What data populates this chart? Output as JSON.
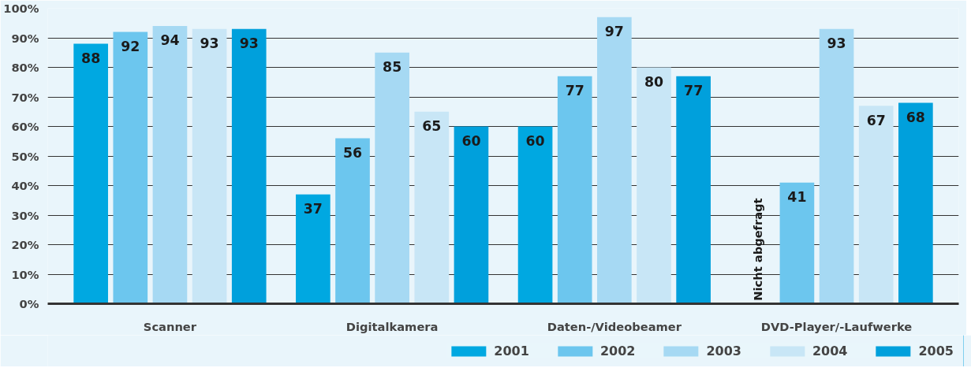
{
  "chart_data": {
    "type": "bar",
    "categories": [
      "Scanner",
      "Digitalkamera",
      "Daten-/Videobeamer",
      "DVD-Player/-Laufwerke"
    ],
    "series": [
      {
        "name": "2001",
        "color": "#00a8e1",
        "values": [
          88,
          37,
          60,
          null
        ]
      },
      {
        "name": "2002",
        "color": "#6cc6ee",
        "values": [
          92,
          56,
          77,
          41
        ]
      },
      {
        "name": "2003",
        "color": "#a6d9f3",
        "values": [
          94,
          85,
          97,
          93
        ]
      },
      {
        "name": "2004",
        "color": "#c8e6f6",
        "values": [
          93,
          65,
          80,
          67
        ]
      },
      {
        "name": "2005",
        "color": "#00a0dc",
        "values": [
          93,
          60,
          77,
          68
        ]
      }
    ],
    "ylim": [
      0,
      100
    ],
    "yticks": [
      {
        "value": 0,
        "label": "0%"
      },
      {
        "value": 10,
        "label": "10%"
      },
      {
        "value": 20,
        "label": "20%"
      },
      {
        "value": 30,
        "label": "30%"
      },
      {
        "value": 40,
        "label": "40%"
      },
      {
        "value": 50,
        "label": "50%"
      },
      {
        "value": 60,
        "label": "60%"
      },
      {
        "value": 70,
        "label": "70%"
      },
      {
        "value": 80,
        "label": "80%"
      },
      {
        "value": 90,
        "label": "90%"
      },
      {
        "value": 100,
        "label": "100%"
      }
    ],
    "grid": "y",
    "legend": "bottom right",
    "data_labels": true,
    "annotations": [
      "Nicht abgefragt"
    ]
  }
}
